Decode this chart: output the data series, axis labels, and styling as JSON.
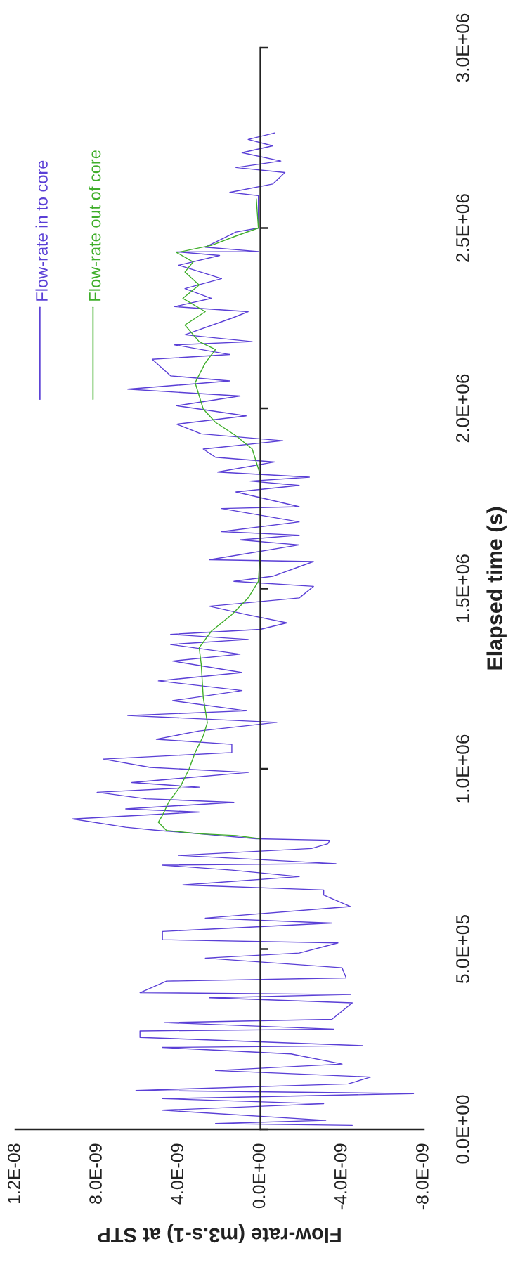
{
  "chart_data": {
    "type": "line",
    "ylabel": "Elapsed time (s)",
    "xlabel": "Flow-rate (m3.s-1) at STP",
    "ylim": [
      0,
      3000000
    ],
    "xlim": [
      1.2e-08,
      -8e-09
    ],
    "yticks": [
      {
        "value": 0,
        "label": "0.0E+00"
      },
      {
        "value": 500000,
        "label": "5.0E+05"
      },
      {
        "value": 1000000,
        "label": "1.0E+06"
      },
      {
        "value": 1500000,
        "label": "1.5E+06"
      },
      {
        "value": 2000000,
        "label": "2.0E+06"
      },
      {
        "value": 2500000,
        "label": "2.5E+06"
      },
      {
        "value": 3000000,
        "label": "3.0E+06"
      }
    ],
    "xticks": [
      {
        "value": -8e-09,
        "label": "-8.0E-09"
      },
      {
        "value": -4e-09,
        "label": "-4.0E-09"
      },
      {
        "value": 0,
        "label": "0.0E+00"
      },
      {
        "value": 4e-09,
        "label": "4.0E-09"
      },
      {
        "value": 8e-09,
        "label": "8.0E-09"
      },
      {
        "value": 1.2e-08,
        "label": "1.2E-08"
      }
    ],
    "legend": "top left",
    "line_style": "solid",
    "marker": "none",
    "series": [
      {
        "name": "Flow-rate in to core",
        "color": "#5a3fd6",
        "values": [
          11000,
          16000,
          25000,
          53000,
          71000,
          85000,
          99000,
          108000,
          126000,
          145000,
          163000,
          181000,
          209000,
          227000,
          232000,
          255000,
          273000,
          278000,
          296000,
          305000,
          351000,
          365000,
          374000,
          379000,
          411000,
          420000,
          448000,
          475000,
          489000,
          517000,
          526000,
          549000,
          572000,
          586000,
          618000,
          650000,
          664000,
          678000,
          701000,
          719000,
          733000,
          737000,
          760000,
          779000,
          792000,
          802000,
          806000,
          820000,
          829000,
          838000,
          861000,
          880000,
          889000,
          907000,
          917000,
          935000,
          949000,
          962000,
          990000,
          1004000,
          1027000,
          1045000,
          1068000,
          1082000,
          1105000,
          1129000,
          1148000,
          1161000,
          1189000,
          1217000,
          1244000,
          1267000,
          1299000,
          1318000,
          1345000,
          1359000,
          1373000,
          1387000,
          1405000,
          1428000,
          1451000,
          1474000,
          1506000,
          1520000,
          1534000,
          1575000,
          1580000,
          1621000,
          1635000,
          1648000,
          1658000,
          1685000,
          1722000,
          1727000,
          1768000,
          1786000,
          1798000,
          1809000,
          1823000,
          1851000,
          1864000,
          1887000,
          1910000,
          1929000,
          1956000,
          1979000,
          2007000,
          2034000,
          2053000,
          2076000,
          2090000,
          2136000,
          2149000,
          2176000,
          2185000,
          2204000,
          2250000,
          2268000,
          2282000,
          2305000,
          2332000,
          2360000,
          2397000,
          2424000,
          2434000,
          2435000,
          2447000,
          2475000,
          2489000,
          2500000,
          2590000,
          2599000,
          2622000,
          2654000,
          2668000,
          2686000,
          2709000,
          2728000,
          2746000,
          2764000
        ],
        "x": [
          -4.5e-09,
          2.2e-09,
          -3.2e-09,
          4.8e-09,
          -3.1e-09,
          4.8e-09,
          -7.5e-09,
          6.1e-09,
          -4.3e-09,
          -5.4e-09,
          2.2e-09,
          -4e-09,
          -1.5e-09,
          4.8e-09,
          -5e-09,
          5.9e-09,
          5.9e-09,
          -3.6e-09,
          4.7e-09,
          -3.5e-09,
          -4.5e-09,
          2.5e-09,
          -4.4e-09,
          5.9e-09,
          4.6e-09,
          -4.2e-09,
          -4e-09,
          2.7e-09,
          -1.9e-09,
          -3.8e-09,
          4.8e-09,
          4.8e-09,
          -3.5e-09,
          2.7e-09,
          -4.4e-09,
          -3.1e-09,
          -3.1e-09,
          3.8e-09,
          -1.9e-09,
          1.4e-09,
          4.8e-09,
          -3.7e-09,
          4e-09,
          -2.5e-09,
          -3.3e-09,
          -3.4e-09,
          2e-10,
          3e-09,
          5e-09,
          6.6e-09,
          9.2e-09,
          3e-09,
          6.6e-09,
          1.3e-09,
          5.6e-09,
          8e-09,
          3e-09,
          6.3e-09,
          6e-10,
          5.4e-09,
          7.7e-09,
          1.4e-09,
          1.4e-09,
          5.1e-09,
          3e-09,
          -8e-10,
          6.5e-09,
          7e-10,
          4.3e-09,
          9e-10,
          5e-09,
          9e-10,
          4.3e-09,
          1e-09,
          4.4e-09,
          6e-10,
          4.4e-09,
          0.0,
          -1.3e-09,
          7e-10,
          2.5e-09,
          -1.9e-09,
          -2.6e-09,
          1.3e-09,
          -6e-10,
          -2.6e-09,
          2.5e-09,
          -1.9e-09,
          1e-09,
          -1.9e-09,
          1.9e-09,
          -1.9e-09,
          1.9e-09,
          -1.9e-09,
          1.2e-09,
          -1.9e-09,
          5e-10,
          -2.4e-09,
          2.1e-09,
          -7e-10,
          2.2e-09,
          2.8e-09,
          -1.1e-09,
          2.9e-09,
          4.1e-09,
          7e-10,
          4.1e-09,
          1e-09,
          6.5e-09,
          1.5e-09,
          4.4e-09,
          5.3e-09,
          1.5e-09,
          4.2e-09,
          4e-10,
          3.7e-09,
          1.4e-09,
          6e-10,
          4.2e-09,
          2.4e-09,
          3.7e-09,
          1.9e-09,
          4e-09,
          2e-09,
          4.1e-09,
          1e-10,
          2.7e-09,
          1.7e-09,
          1.2e-09,
          1e-10,
          1e-10,
          1.5e-09,
          -6e-10,
          -1.2e-09,
          1.2e-09,
          -1e-09,
          9e-10,
          -6e-10,
          6e-10,
          -7e-10
        ]
      },
      {
        "name": "Flow-rate out of core",
        "color": "#3fae2a",
        "values": [
          806000,
          815000,
          820000,
          829000,
          852000,
          871000,
          907000,
          953000,
          999000,
          1045000,
          1091000,
          1128000,
          1198000,
          1290000,
          1336000,
          1382000,
          1428000,
          1474000,
          1520000,
          1612000,
          1704000,
          1814000,
          1887000,
          1924000,
          1961000,
          1998000,
          2071000,
          2126000,
          2163000,
          2185000,
          2231000,
          2268000,
          2305000,
          2342000,
          2378000,
          2406000,
          2432000,
          2452000,
          2480000,
          2500000,
          2581000
        ],
        "x": [
          0.0,
          1.2e-09,
          3e-09,
          4.6e-09,
          5e-09,
          4.8e-09,
          4.5e-09,
          3.9e-09,
          3.5e-09,
          3.2e-09,
          2.8e-09,
          2.6e-09,
          2.8e-09,
          2.9e-09,
          3e-09,
          2.4e-09,
          1.4e-09,
          6e-10,
          1e-10,
          0.0,
          0.0,
          0.0,
          4e-10,
          1.2e-09,
          2.2e-09,
          2.8e-09,
          3.2e-09,
          2.7e-09,
          2.2e-09,
          3e-09,
          3.7e-09,
          2.7e-09,
          3.8e-09,
          3e-09,
          3.7e-09,
          3.3e-09,
          4.1e-09,
          2.4e-09,
          1.1e-09,
          1e-10,
          2e-10
        ]
      }
    ]
  }
}
